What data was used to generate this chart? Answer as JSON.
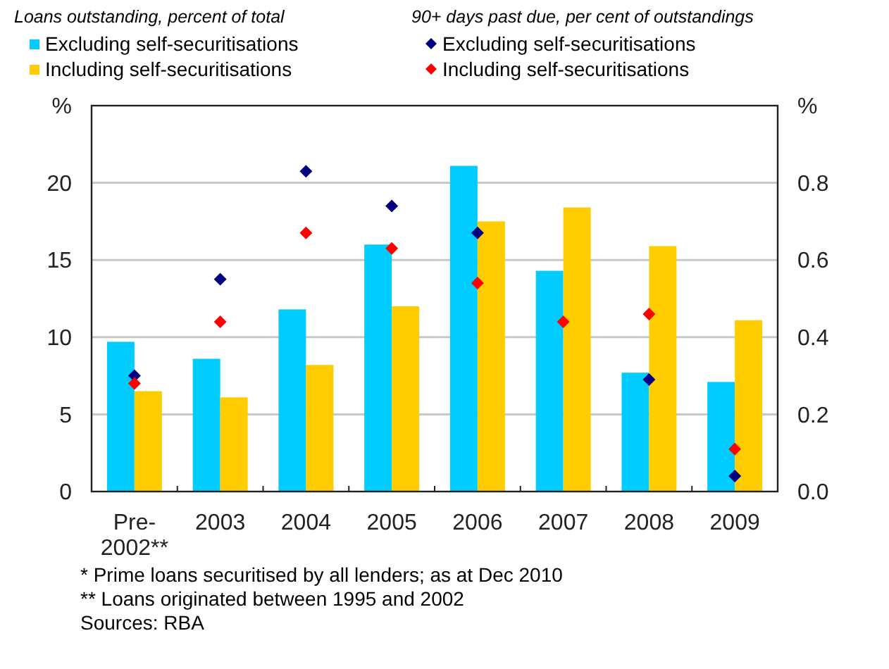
{
  "chart_data": {
    "type": "bar",
    "ylabel": "Loans outstanding, percent of total",
    "y2label": "90+ days past due, per cent of outstandings",
    "categories": [
      "Pre-2002**",
      "2003",
      "2004",
      "2005",
      "2006",
      "2007",
      "2008",
      "2009"
    ],
    "series": [
      {
        "name": "Excluding self-securitisations",
        "color": "#00ccff",
        "values": [
          9.7,
          8.6,
          11.8,
          16.0,
          21.1,
          14.3,
          7.7,
          7.1
        ]
      },
      {
        "name": "Including self-securitisations",
        "color": "#ffcc00",
        "values": [
          6.5,
          6.1,
          8.2,
          12.0,
          17.5,
          18.4,
          15.9,
          11.1
        ]
      },
      {
        "name": "Excluding self-securitisations",
        "type": "scatter",
        "axis": "y2",
        "marker": "diamond",
        "color": "#000080",
        "values": [
          0.3,
          0.55,
          0.83,
          0.74,
          0.67,
          null,
          0.29,
          0.04
        ]
      },
      {
        "name": "Including self-securitisations",
        "type": "scatter",
        "axis": "y2",
        "marker": "diamond",
        "color": "#ff0000",
        "values": [
          0.28,
          0.44,
          0.67,
          0.63,
          0.54,
          0.44,
          0.46,
          0.11
        ]
      }
    ],
    "ylim": [
      0,
      25
    ],
    "yticks": [
      0,
      5,
      10,
      15,
      20,
      {
        "value": 25,
        "label": "%"
      }
    ],
    "y2lim": [
      0,
      1
    ],
    "y2ticks": [
      {
        "value": 0,
        "label": "0.0"
      },
      0.2,
      0.4,
      0.6,
      0.8,
      {
        "value": 1,
        "label": "%"
      }
    ],
    "grid": "y",
    "legend": "top",
    "annotations": [
      "* Prime loans securitised by all lenders; as at Dec 2010",
      "** Loans originated between 1995 and 2002",
      "Sources: RBA"
    ]
  }
}
